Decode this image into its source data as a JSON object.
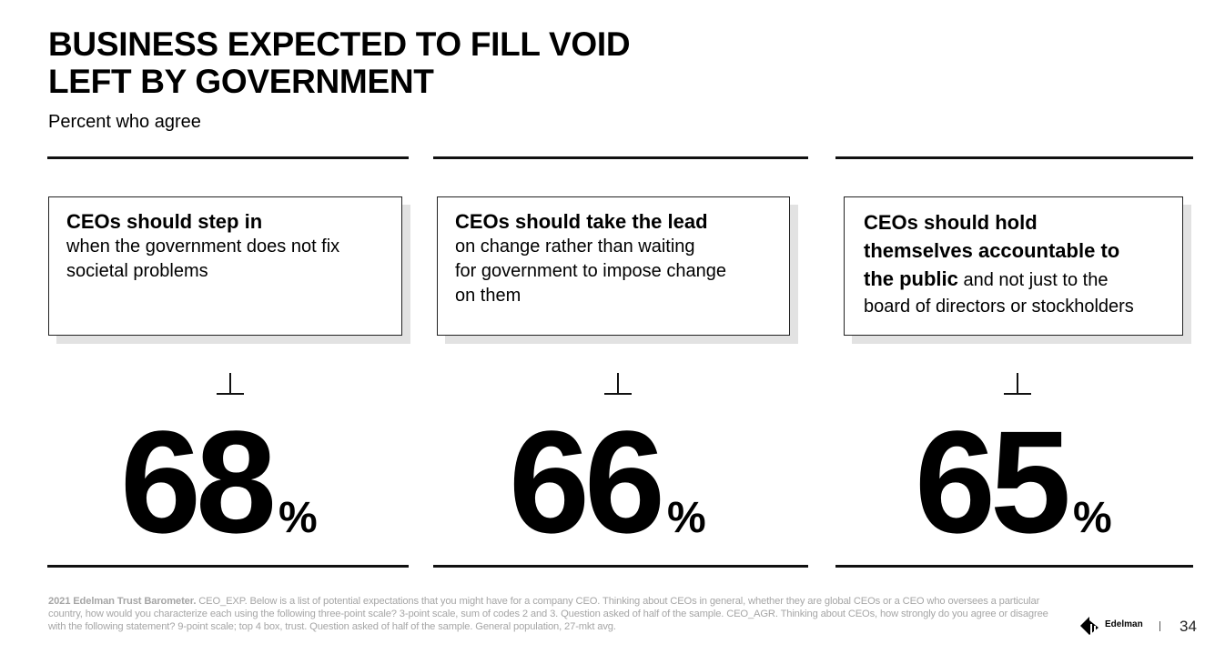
{
  "title": {
    "line1": "BUSINESS EXPECTED TO FILL VOID",
    "line2": "LEFT BY GOVERNMENT"
  },
  "subtitle": "Percent who agree",
  "cards": [
    {
      "head": "CEOs should step in",
      "body_lines": [
        "when the government does not fix",
        "societal problems"
      ]
    },
    {
      "head": "CEOs should take the lead",
      "body_lines": [
        "on change rather than waiting",
        "for government to impose change",
        "on them"
      ]
    },
    {
      "head_lines": [
        "CEOs should hold",
        "themselves accountable to",
        "the public"
      ],
      "body_inline": " and not just to the",
      "body_lines": [
        "board of directors or stockholders"
      ]
    }
  ],
  "stats": [
    {
      "value": "68",
      "unit": "%"
    },
    {
      "value": "66",
      "unit": "%"
    },
    {
      "value": "65",
      "unit": "%"
    }
  ],
  "footnote": {
    "source": "2021 Edelman Trust Barometer.",
    "text": " CEO_EXP.  Below is a list of potential expectations that you might have for a company CEO. Thinking about CEOs in general, whether they  are global CEOs or a CEO who oversees a particular country, how would you characterize each using the following three-point scale? 3-point scale, sum of codes 2 and 3.  Question asked of half of the sample. CEO_AGR. Thinking about CEOs, how strongly do you  agree or disagree with the following statement? 9-point scale; top 4 box, trust. Question asked of half of the sample. General population, 27-mkt avg."
  },
  "logo_text": "Edelman",
  "page_number": "34"
}
